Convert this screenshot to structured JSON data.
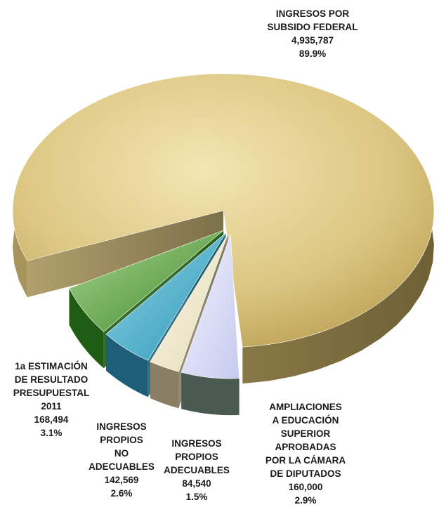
{
  "chart_data": {
    "type": "pie",
    "title": "",
    "slices": [
      {
        "label_lines": [
          "INGRESOS POR",
          "SUBSIDO FEDERAL"
        ],
        "value": "4,935,787",
        "percent": "89.9%",
        "color": "#d9c47e",
        "exploded": false
      },
      {
        "label_lines": [
          "AMPLIACIONES",
          "A EDUCACIÓN",
          "SUPERIOR",
          "APROBADAS",
          "POR LA CÁMARA",
          "DE DIPUTADOS"
        ],
        "value": "160,000",
        "percent": "2.9%",
        "color": "#d6d9f4",
        "exploded": true
      },
      {
        "label_lines": [
          "INGRESOS",
          "PROPIOS",
          "ADECUABLES"
        ],
        "value": "84,540",
        "percent": "1.5%",
        "color": "#f0ead2",
        "exploded": true
      },
      {
        "label_lines": [
          "INGRESOS",
          "PROPIOS",
          "NO",
          "ADECUABLES"
        ],
        "value": "142,569",
        "percent": "2.6%",
        "color": "#3aa8c4",
        "exploded": true
      },
      {
        "label_lines": [
          "1a ESTIMACIÓN",
          "DE RESULTADO",
          "PRESUPUESTAL",
          "2011"
        ],
        "value": "168,494",
        "percent": "3.1%",
        "color": "#2f7a22",
        "exploded": true
      }
    ]
  }
}
